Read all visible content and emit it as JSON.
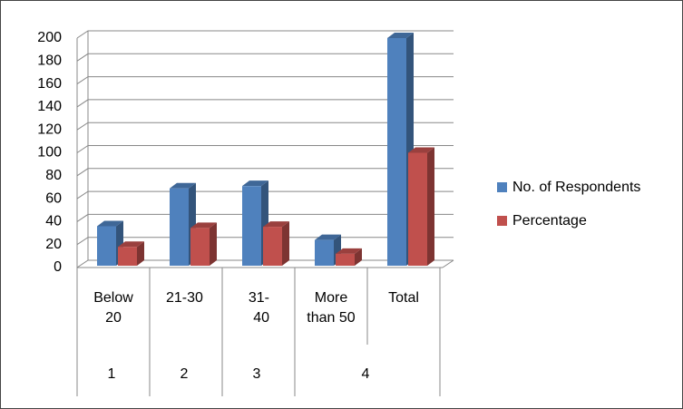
{
  "chart_data": {
    "type": "bar3d",
    "category_groups": [
      {
        "label": "1",
        "categories": [
          "Below 20"
        ]
      },
      {
        "label": "2",
        "categories": [
          "21-30"
        ]
      },
      {
        "label": "3",
        "categories": [
          "31-40"
        ]
      },
      {
        "label": "4",
        "categories": [
          "More than 50",
          "Total"
        ]
      }
    ],
    "series": [
      {
        "name": "No. of Respondents",
        "color": "#4f81bd",
        "values": [
          36,
          69,
          71,
          24,
          200
        ]
      },
      {
        "name": "Percentage",
        "color": "#c0504d",
        "values": [
          18,
          34.5,
          35.5,
          12,
          100
        ]
      }
    ],
    "ylim": [
      0,
      200
    ],
    "yticks": [
      0,
      20,
      40,
      60,
      80,
      100,
      120,
      140,
      160,
      180,
      200
    ],
    "grid": true,
    "legend": "right"
  }
}
